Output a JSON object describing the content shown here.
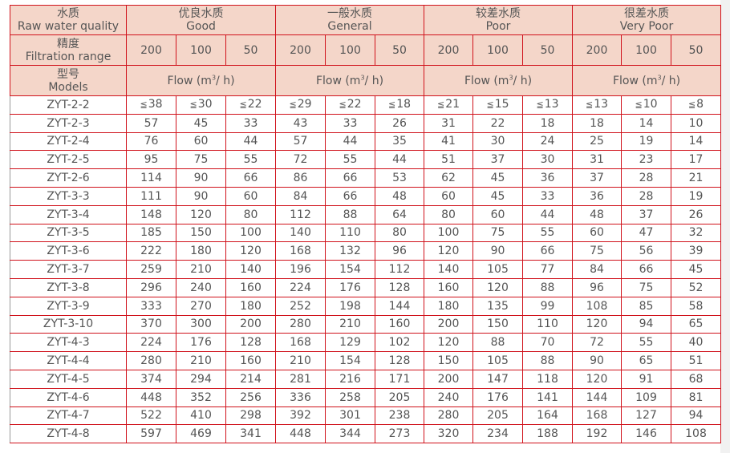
{
  "header": {
    "quality_cn": "水质",
    "quality_en": "Raw water quality",
    "filtration_cn": "精度",
    "filtration_en": "Filtration range",
    "models_cn": "型号",
    "models_en": "Models",
    "groups": [
      {
        "cn": "优良水质",
        "en": "Good"
      },
      {
        "cn": "一般水质",
        "en": "General"
      },
      {
        "cn": "较差水质",
        "en": "Poor"
      },
      {
        "cn": "很差水质",
        "en": "Very Poor"
      }
    ],
    "filtration_values": [
      "200",
      "100",
      "50"
    ],
    "flow_label_prefix": "Flow (m",
    "flow_label_sup": "3",
    "flow_label_suffix": "/ h)",
    "le_symbol": "≦"
  },
  "rows": [
    {
      "model": "ZYT-2-2",
      "values": [
        "38",
        "30",
        "22",
        "29",
        "22",
        "18",
        "21",
        "15",
        "13",
        "13",
        "10",
        "8"
      ],
      "max_prefix": true
    },
    {
      "model": "ZYT-2-3",
      "values": [
        "57",
        "45",
        "33",
        "43",
        "33",
        "26",
        "31",
        "22",
        "18",
        "18",
        "14",
        "10"
      ]
    },
    {
      "model": "ZYT-2-4",
      "values": [
        "76",
        "60",
        "44",
        "57",
        "44",
        "35",
        "41",
        "30",
        "24",
        "25",
        "19",
        "14"
      ]
    },
    {
      "model": "ZYT-2-5",
      "values": [
        "95",
        "75",
        "55",
        "72",
        "55",
        "44",
        "51",
        "37",
        "30",
        "31",
        "23",
        "17"
      ]
    },
    {
      "model": "ZYT-2-6",
      "values": [
        "114",
        "90",
        "66",
        "86",
        "66",
        "53",
        "62",
        "45",
        "36",
        "37",
        "28",
        "21"
      ]
    },
    {
      "model": "ZYT-3-3",
      "values": [
        "111",
        "90",
        "60",
        "84",
        "66",
        "48",
        "60",
        "45",
        "33",
        "36",
        "28",
        "19"
      ]
    },
    {
      "model": "ZYT-3-4",
      "values": [
        "148",
        "120",
        "80",
        "112",
        "88",
        "64",
        "80",
        "60",
        "44",
        "48",
        "37",
        "26"
      ]
    },
    {
      "model": "ZYT-3-5",
      "values": [
        "185",
        "150",
        "100",
        "140",
        "110",
        "80",
        "100",
        "75",
        "55",
        "60",
        "47",
        "32"
      ]
    },
    {
      "model": "ZYT-3-6",
      "values": [
        "222",
        "180",
        "120",
        "168",
        "132",
        "96",
        "120",
        "90",
        "66",
        "75",
        "56",
        "39"
      ]
    },
    {
      "model": "ZYT-3-7",
      "values": [
        "259",
        "210",
        "140",
        "196",
        "154",
        "112",
        "140",
        "105",
        "77",
        "84",
        "66",
        "45"
      ]
    },
    {
      "model": "ZYT-3-8",
      "values": [
        "296",
        "240",
        "160",
        "224",
        "176",
        "128",
        "160",
        "120",
        "88",
        "96",
        "75",
        "52"
      ]
    },
    {
      "model": "ZYT-3-9",
      "values": [
        "333",
        "270",
        "180",
        "252",
        "198",
        "144",
        "180",
        "135",
        "99",
        "108",
        "85",
        "58"
      ]
    },
    {
      "model": "ZYT-3-10",
      "values": [
        "370",
        "300",
        "200",
        "280",
        "210",
        "160",
        "200",
        "150",
        "110",
        "120",
        "94",
        "65"
      ]
    },
    {
      "model": "ZYT-4-3",
      "values": [
        "224",
        "176",
        "128",
        "168",
        "129",
        "102",
        "120",
        "88",
        "70",
        "72",
        "55",
        "40"
      ]
    },
    {
      "model": "ZYT-4-4",
      "values": [
        "280",
        "210",
        "160",
        "210",
        "154",
        "128",
        "150",
        "105",
        "88",
        "90",
        "65",
        "51"
      ]
    },
    {
      "model": "ZYT-4-5",
      "values": [
        "374",
        "294",
        "214",
        "281",
        "216",
        "171",
        "200",
        "147",
        "118",
        "120",
        "91",
        "68"
      ]
    },
    {
      "model": "ZYT-4-6",
      "values": [
        "448",
        "352",
        "256",
        "336",
        "258",
        "205",
        "240",
        "176",
        "141",
        "144",
        "109",
        "81"
      ]
    },
    {
      "model": "ZYT-4-7",
      "values": [
        "522",
        "410",
        "298",
        "392",
        "301",
        "238",
        "280",
        "205",
        "164",
        "168",
        "127",
        "94"
      ]
    },
    {
      "model": "ZYT-4-8",
      "values": [
        "597",
        "469",
        "341",
        "448",
        "344",
        "273",
        "320",
        "234",
        "188",
        "192",
        "146",
        "108"
      ]
    }
  ],
  "colors": {
    "border": "#d0121b",
    "header_bg": "#f4d6c9",
    "text": "#555555"
  }
}
